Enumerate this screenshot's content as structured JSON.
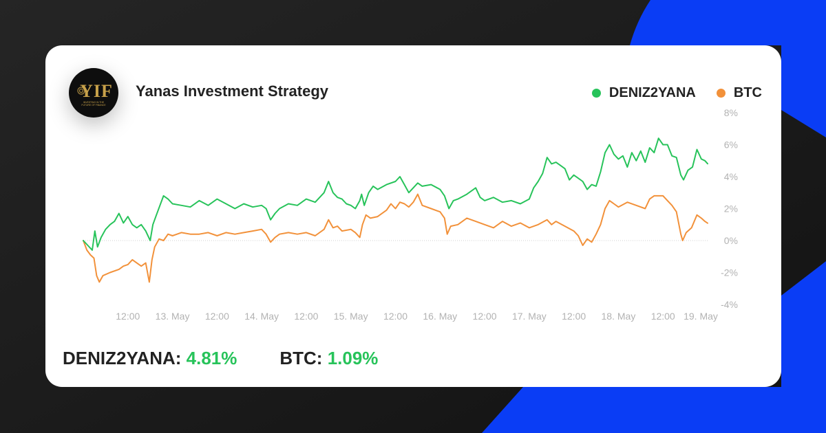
{
  "card": {
    "title": "Yanas Investment Strategy",
    "logo_text": "YIF",
    "logo_tagline_1": "INVESTING IN THE",
    "logo_tagline_2": "FUTURE OF FINANCE"
  },
  "colors": {
    "background": "#1b1b1b",
    "accent_blue": "#0a3df5",
    "deniz2yana": "#27c35a",
    "btc": "#f2913a",
    "logo_gold": "#c8a24a"
  },
  "legend": {
    "items": [
      {
        "label": "DENIZ2YANA",
        "color": "#27c35a"
      },
      {
        "label": "BTC",
        "color": "#f2913a"
      }
    ]
  },
  "summary": {
    "deniz_label": "DENIZ2YANA:",
    "deniz_value": "4.81%",
    "btc_label": "BTC:",
    "btc_value": "1.09%"
  },
  "chart_data": {
    "type": "line",
    "title": "",
    "xlabel": "",
    "ylabel": "",
    "x_range_days": [
      0,
      7.0
    ],
    "ylim": [
      -4,
      8
    ],
    "y_ticks": [
      -4,
      -2,
      0,
      2,
      4,
      6,
      8
    ],
    "y_tick_labels": [
      "-4%",
      "-2%",
      "0%",
      "2%",
      "4%",
      "6%",
      "8%"
    ],
    "x_ticks": [
      {
        "x": 0.5,
        "label": "12:00"
      },
      {
        "x": 1.0,
        "label": "13. May"
      },
      {
        "x": 1.5,
        "label": "12:00"
      },
      {
        "x": 2.0,
        "label": "14. May"
      },
      {
        "x": 2.5,
        "label": "12:00"
      },
      {
        "x": 3.0,
        "label": "15. May"
      },
      {
        "x": 3.5,
        "label": "12:00"
      },
      {
        "x": 4.0,
        "label": "16. May"
      },
      {
        "x": 4.5,
        "label": "12:00"
      },
      {
        "x": 5.0,
        "label": "17. May"
      },
      {
        "x": 5.5,
        "label": "12:00"
      },
      {
        "x": 6.0,
        "label": "18. May"
      },
      {
        "x": 6.5,
        "label": "12:00"
      },
      {
        "x": 7.0,
        "label": "19. May"
      }
    ],
    "series": [
      {
        "name": "DENIZ2YANA",
        "color": "#27c35a",
        "points": [
          [
            0.0,
            0.0
          ],
          [
            0.05,
            -0.3
          ],
          [
            0.1,
            -0.6
          ],
          [
            0.13,
            0.6
          ],
          [
            0.16,
            -0.4
          ],
          [
            0.2,
            0.2
          ],
          [
            0.25,
            0.7
          ],
          [
            0.3,
            1.0
          ],
          [
            0.35,
            1.2
          ],
          [
            0.4,
            1.7
          ],
          [
            0.45,
            1.1
          ],
          [
            0.5,
            1.5
          ],
          [
            0.55,
            1.0
          ],
          [
            0.6,
            0.8
          ],
          [
            0.65,
            1.0
          ],
          [
            0.7,
            0.6
          ],
          [
            0.75,
            0.0
          ],
          [
            0.78,
            1.0
          ],
          [
            0.82,
            1.6
          ],
          [
            0.86,
            2.2
          ],
          [
            0.9,
            2.8
          ],
          [
            0.95,
            2.6
          ],
          [
            1.0,
            2.3
          ],
          [
            1.1,
            2.2
          ],
          [
            1.2,
            2.1
          ],
          [
            1.3,
            2.5
          ],
          [
            1.4,
            2.2
          ],
          [
            1.5,
            2.6
          ],
          [
            1.6,
            2.3
          ],
          [
            1.7,
            2.0
          ],
          [
            1.8,
            2.3
          ],
          [
            1.9,
            2.1
          ],
          [
            2.0,
            2.2
          ],
          [
            2.05,
            2.0
          ],
          [
            2.1,
            1.3
          ],
          [
            2.15,
            1.7
          ],
          [
            2.2,
            2.0
          ],
          [
            2.3,
            2.3
          ],
          [
            2.4,
            2.2
          ],
          [
            2.5,
            2.6
          ],
          [
            2.6,
            2.4
          ],
          [
            2.7,
            3.0
          ],
          [
            2.75,
            3.7
          ],
          [
            2.8,
            3.0
          ],
          [
            2.85,
            2.7
          ],
          [
            2.9,
            2.6
          ],
          [
            2.95,
            2.3
          ],
          [
            3.0,
            2.2
          ],
          [
            3.05,
            2.0
          ],
          [
            3.1,
            2.5
          ],
          [
            3.12,
            2.9
          ],
          [
            3.15,
            2.2
          ],
          [
            3.2,
            3.0
          ],
          [
            3.25,
            3.4
          ],
          [
            3.3,
            3.2
          ],
          [
            3.4,
            3.5
          ],
          [
            3.5,
            3.7
          ],
          [
            3.55,
            4.0
          ],
          [
            3.6,
            3.5
          ],
          [
            3.65,
            3.0
          ],
          [
            3.7,
            3.3
          ],
          [
            3.75,
            3.6
          ],
          [
            3.8,
            3.4
          ],
          [
            3.9,
            3.5
          ],
          [
            4.0,
            3.2
          ],
          [
            4.05,
            2.8
          ],
          [
            4.1,
            2.0
          ],
          [
            4.15,
            2.5
          ],
          [
            4.2,
            2.6
          ],
          [
            4.3,
            2.9
          ],
          [
            4.4,
            3.3
          ],
          [
            4.45,
            2.7
          ],
          [
            4.5,
            2.5
          ],
          [
            4.6,
            2.7
          ],
          [
            4.7,
            2.4
          ],
          [
            4.8,
            2.5
          ],
          [
            4.9,
            2.3
          ],
          [
            5.0,
            2.6
          ],
          [
            5.05,
            3.3
          ],
          [
            5.1,
            3.7
          ],
          [
            5.15,
            4.2
          ],
          [
            5.2,
            5.2
          ],
          [
            5.25,
            4.8
          ],
          [
            5.3,
            4.9
          ],
          [
            5.35,
            4.7
          ],
          [
            5.4,
            4.5
          ],
          [
            5.45,
            3.8
          ],
          [
            5.5,
            4.1
          ],
          [
            5.55,
            3.9
          ],
          [
            5.6,
            3.7
          ],
          [
            5.65,
            3.2
          ],
          [
            5.7,
            3.5
          ],
          [
            5.75,
            3.4
          ],
          [
            5.8,
            4.3
          ],
          [
            5.85,
            5.5
          ],
          [
            5.9,
            6.0
          ],
          [
            5.95,
            5.4
          ],
          [
            6.0,
            5.1
          ],
          [
            6.05,
            5.3
          ],
          [
            6.1,
            4.6
          ],
          [
            6.15,
            5.5
          ],
          [
            6.2,
            5.0
          ],
          [
            6.25,
            5.6
          ],
          [
            6.3,
            4.9
          ],
          [
            6.35,
            5.8
          ],
          [
            6.4,
            5.5
          ],
          [
            6.45,
            6.4
          ],
          [
            6.5,
            6.0
          ],
          [
            6.55,
            6.0
          ],
          [
            6.6,
            5.3
          ],
          [
            6.65,
            5.2
          ],
          [
            6.7,
            4.1
          ],
          [
            6.73,
            3.8
          ],
          [
            6.78,
            4.4
          ],
          [
            6.83,
            4.6
          ],
          [
            6.88,
            5.7
          ],
          [
            6.93,
            5.1
          ],
          [
            6.97,
            5.0
          ],
          [
            7.0,
            4.81
          ]
        ]
      },
      {
        "name": "BTC",
        "color": "#f2913a",
        "points": [
          [
            0.0,
            0.0
          ],
          [
            0.04,
            -0.6
          ],
          [
            0.08,
            -0.9
          ],
          [
            0.12,
            -1.1
          ],
          [
            0.15,
            -2.2
          ],
          [
            0.18,
            -2.6
          ],
          [
            0.22,
            -2.2
          ],
          [
            0.3,
            -2.0
          ],
          [
            0.4,
            -1.8
          ],
          [
            0.45,
            -1.6
          ],
          [
            0.5,
            -1.5
          ],
          [
            0.55,
            -1.2
          ],
          [
            0.6,
            -1.4
          ],
          [
            0.65,
            -1.6
          ],
          [
            0.7,
            -1.4
          ],
          [
            0.72,
            -2.0
          ],
          [
            0.74,
            -2.6
          ],
          [
            0.77,
            -1.2
          ],
          [
            0.8,
            -0.4
          ],
          [
            0.85,
            0.1
          ],
          [
            0.9,
            0.0
          ],
          [
            0.95,
            0.4
          ],
          [
            1.0,
            0.3
          ],
          [
            1.1,
            0.5
          ],
          [
            1.2,
            0.4
          ],
          [
            1.3,
            0.4
          ],
          [
            1.4,
            0.5
          ],
          [
            1.5,
            0.3
          ],
          [
            1.6,
            0.5
          ],
          [
            1.7,
            0.4
          ],
          [
            1.8,
            0.5
          ],
          [
            1.9,
            0.6
          ],
          [
            2.0,
            0.7
          ],
          [
            2.05,
            0.4
          ],
          [
            2.1,
            -0.1
          ],
          [
            2.15,
            0.2
          ],
          [
            2.2,
            0.4
          ],
          [
            2.3,
            0.5
          ],
          [
            2.4,
            0.4
          ],
          [
            2.5,
            0.5
          ],
          [
            2.6,
            0.3
          ],
          [
            2.7,
            0.7
          ],
          [
            2.75,
            1.3
          ],
          [
            2.8,
            0.8
          ],
          [
            2.85,
            0.9
          ],
          [
            2.9,
            0.6
          ],
          [
            3.0,
            0.7
          ],
          [
            3.05,
            0.5
          ],
          [
            3.1,
            0.2
          ],
          [
            3.13,
            1.0
          ],
          [
            3.17,
            1.6
          ],
          [
            3.22,
            1.4
          ],
          [
            3.3,
            1.5
          ],
          [
            3.4,
            1.9
          ],
          [
            3.45,
            2.3
          ],
          [
            3.5,
            2.0
          ],
          [
            3.55,
            2.4
          ],
          [
            3.6,
            2.3
          ],
          [
            3.65,
            2.1
          ],
          [
            3.7,
            2.4
          ],
          [
            3.75,
            2.9
          ],
          [
            3.8,
            2.2
          ],
          [
            3.9,
            2.0
          ],
          [
            4.0,
            1.8
          ],
          [
            4.05,
            1.4
          ],
          [
            4.08,
            0.4
          ],
          [
            4.12,
            0.9
          ],
          [
            4.2,
            1.0
          ],
          [
            4.3,
            1.4
          ],
          [
            4.4,
            1.2
          ],
          [
            4.5,
            1.0
          ],
          [
            4.6,
            0.8
          ],
          [
            4.7,
            1.2
          ],
          [
            4.8,
            0.9
          ],
          [
            4.9,
            1.1
          ],
          [
            5.0,
            0.8
          ],
          [
            5.1,
            1.0
          ],
          [
            5.2,
            1.3
          ],
          [
            5.25,
            1.0
          ],
          [
            5.3,
            1.2
          ],
          [
            5.4,
            0.9
          ],
          [
            5.5,
            0.6
          ],
          [
            5.55,
            0.3
          ],
          [
            5.6,
            -0.3
          ],
          [
            5.65,
            0.1
          ],
          [
            5.7,
            -0.1
          ],
          [
            5.75,
            0.4
          ],
          [
            5.8,
            1.0
          ],
          [
            5.85,
            2.0
          ],
          [
            5.9,
            2.5
          ],
          [
            5.95,
            2.3
          ],
          [
            6.0,
            2.1
          ],
          [
            6.1,
            2.4
          ],
          [
            6.2,
            2.2
          ],
          [
            6.3,
            2.0
          ],
          [
            6.35,
            2.6
          ],
          [
            6.4,
            2.8
          ],
          [
            6.5,
            2.8
          ],
          [
            6.55,
            2.5
          ],
          [
            6.6,
            2.2
          ],
          [
            6.65,
            1.8
          ],
          [
            6.7,
            0.4
          ],
          [
            6.72,
            0.0
          ],
          [
            6.76,
            0.5
          ],
          [
            6.82,
            0.8
          ],
          [
            6.88,
            1.6
          ],
          [
            6.93,
            1.4
          ],
          [
            6.97,
            1.2
          ],
          [
            7.0,
            1.09
          ]
        ]
      }
    ],
    "reference_line_y": 0,
    "grid": false
  }
}
